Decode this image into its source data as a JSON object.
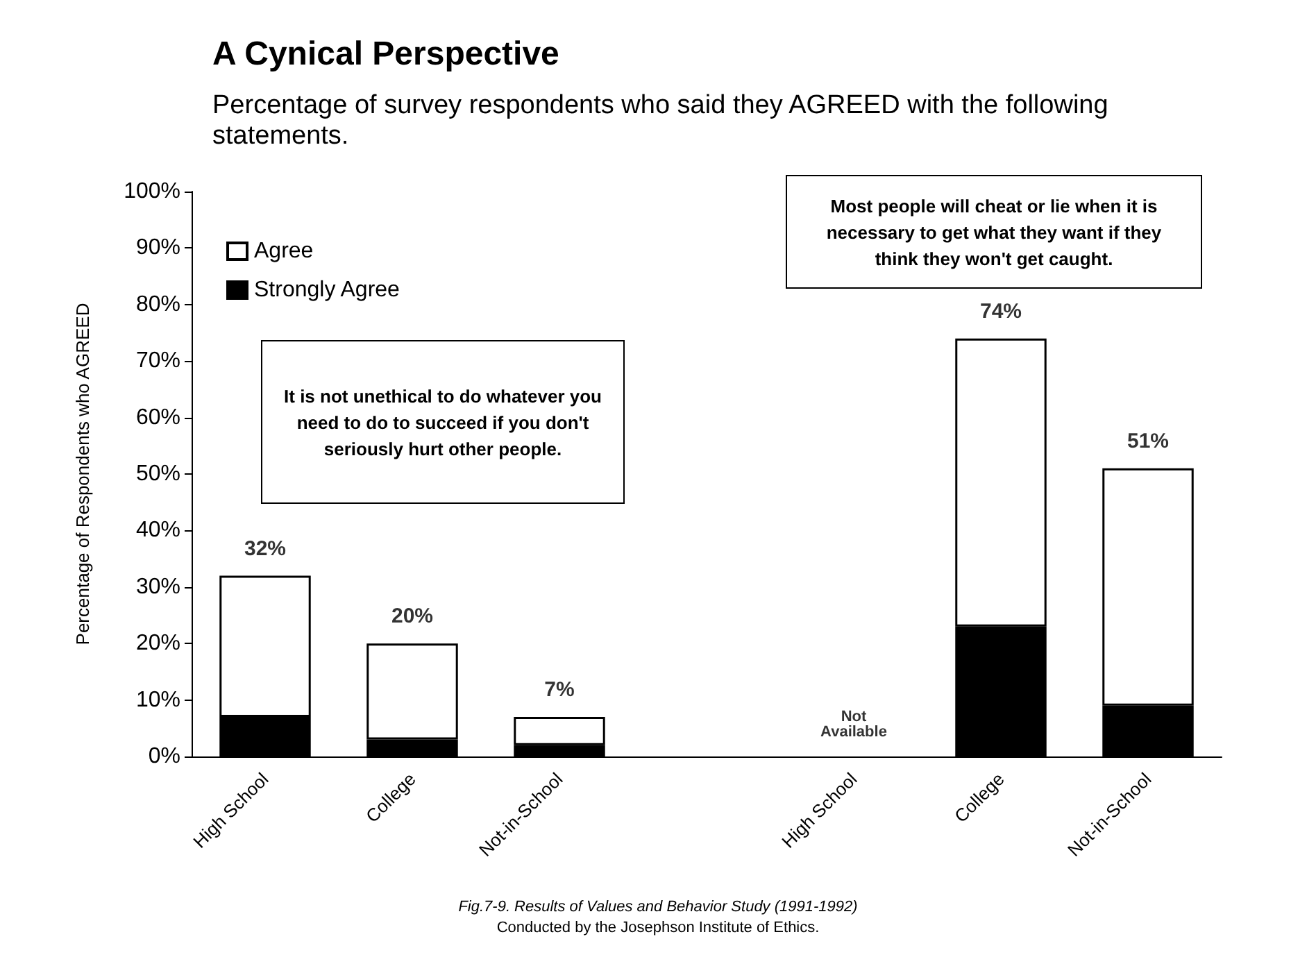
{
  "chart_data": {
    "type": "bar",
    "title": "A Cynical Perspective",
    "subtitle": "Percentage of survey respondents who said they AGREED with the following statements.",
    "ylabel": "Percentage of Respondents who AGREED",
    "categories": [
      "High School",
      "College",
      "Not-in-School",
      null,
      "High School",
      "College",
      "Not-in-School"
    ],
    "stacked": true,
    "series": [
      {
        "name": "Strongly Agree",
        "color": "#000000",
        "values": [
          7,
          3,
          2,
          null,
          null,
          23,
          9
        ]
      },
      {
        "name": "Agree",
        "color": "#ffffff",
        "values": [
          25,
          17,
          5,
          null,
          null,
          51,
          42
        ]
      }
    ],
    "totals": [
      "32%",
      "20%",
      "7%",
      null,
      "Not Available",
      "74%",
      "51%"
    ],
    "ylim": [
      0,
      100
    ],
    "yticks": [
      {
        "value": 0,
        "label": "0%"
      },
      {
        "value": 10,
        "label": "10%"
      },
      {
        "value": 20,
        "label": "20%"
      },
      {
        "value": 30,
        "label": "30%"
      },
      {
        "value": 40,
        "label": "40%"
      },
      {
        "value": 50,
        "label": "50%"
      },
      {
        "value": 60,
        "label": "60%"
      },
      {
        "value": 70,
        "label": "70%"
      },
      {
        "value": 80,
        "label": "80%"
      },
      {
        "value": 90,
        "label": "90%"
      },
      {
        "value": 100,
        "label": "100%"
      }
    ],
    "grid": false,
    "legend": "top left",
    "annotations": [
      "It is not unethical to do whatever you need to do to succeed if you don't seriously hurt other people.",
      "Most people will cheat or lie when it is necessary to get what they want if they think they won't get caught.",
      "Fig.7-9. Results of Values and Behavior Study (1991-1992)",
      "Conducted by the Josephson Institute of Ethics."
    ]
  }
}
